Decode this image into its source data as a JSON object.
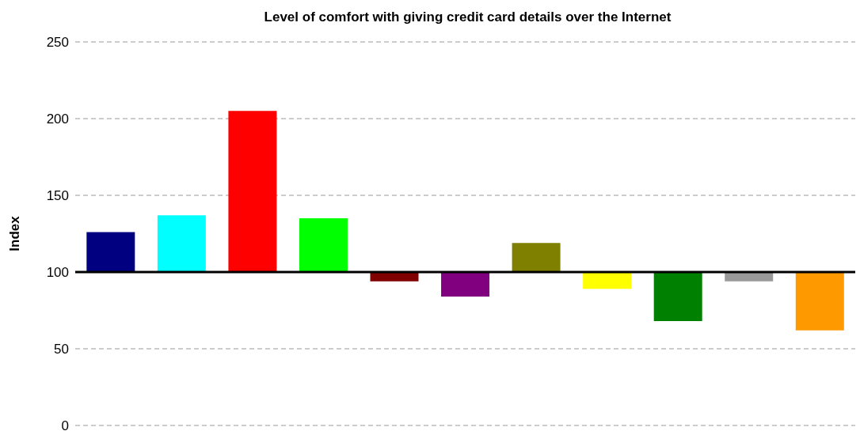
{
  "chart_data": {
    "type": "bar",
    "title": "Level of comfort with giving credit card details over the Internet",
    "ylabel": "Index",
    "categories": [
      null,
      null,
      null,
      null,
      null,
      null,
      null,
      null,
      null,
      null,
      null
    ],
    "base": [
      100,
      100,
      100,
      100,
      100,
      100,
      100,
      100,
      100,
      100,
      100
    ],
    "values": [
      26,
      37,
      105,
      35,
      -6,
      -16,
      19,
      -11,
      -32,
      -6,
      -38
    ],
    "colors": [
      "#000080",
      "#00ffff",
      "#ff0000",
      "#00ff00",
      "#800000",
      "#800080",
      "#808000",
      "#ffff00",
      "#008000",
      "#999999",
      "#ff9900"
    ],
    "ylim": [
      0,
      250
    ],
    "yticks": [
      0,
      50,
      100,
      150,
      200,
      250
    ],
    "grid": "y",
    "ref_lines": [
      {
        "axis": "y",
        "value": 100,
        "color": "#000000"
      }
    ]
  }
}
